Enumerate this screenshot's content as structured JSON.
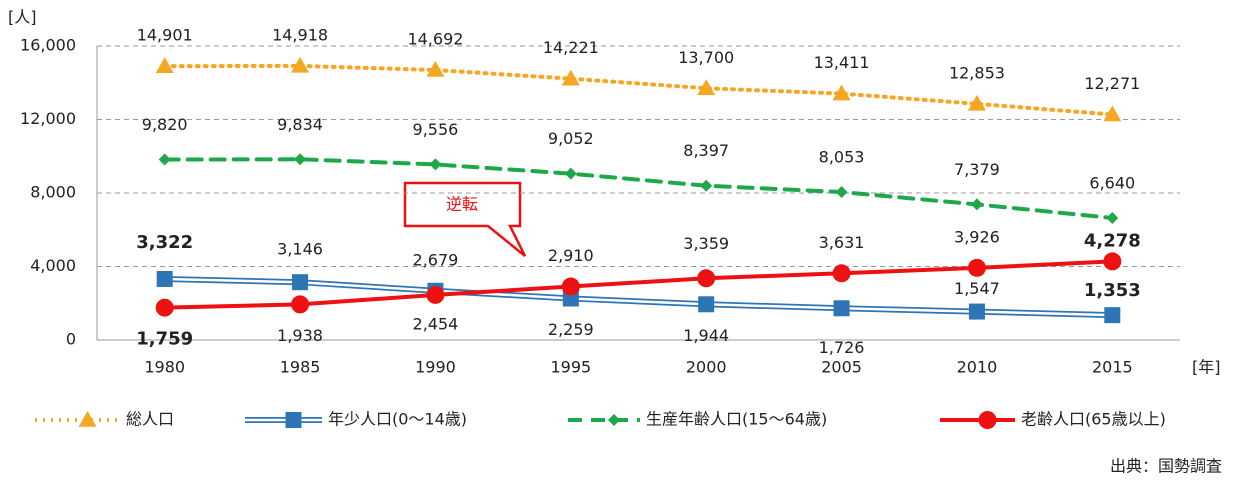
{
  "chart_data": {
    "type": "line",
    "y_unit": "[人]",
    "x_unit": "[年]",
    "source": "出典：国勢調査",
    "annotation": "逆転",
    "categories": [
      "1980",
      "1985",
      "1990",
      "1995",
      "2000",
      "2005",
      "2010",
      "2015"
    ],
    "series": [
      {
        "name": "総人口",
        "color": "#f5a623",
        "style": "dotted",
        "marker": "triangle",
        "values": [
          14901,
          14918,
          14692,
          14221,
          13700,
          13411,
          12853,
          12271
        ],
        "value_labels": [
          "14,901",
          "14,918",
          "14,692",
          "14,221",
          "13,700",
          "13,411",
          "12,853",
          "12,271"
        ]
      },
      {
        "name": "年少人口(0〜14歳)",
        "color": "#2e75b6",
        "style": "double",
        "marker": "square",
        "values": [
          3322,
          3146,
          2679,
          2259,
          1944,
          1726,
          1547,
          1353
        ],
        "value_labels": [
          "3,322",
          "3,146",
          "2,679",
          "2,259",
          "1,944",
          "1,726",
          "1,547",
          "1,353"
        ]
      },
      {
        "name": "生産年齢人口(15〜64歳)",
        "color": "#1ea84a",
        "style": "dashed",
        "marker": "diamond",
        "values": [
          9820,
          9834,
          9556,
          9052,
          8397,
          8053,
          7379,
          6640
        ],
        "value_labels": [
          "9,820",
          "9,834",
          "9,556",
          "9,052",
          "8,397",
          "8,053",
          "7,379",
          "6,640"
        ]
      },
      {
        "name": "老齢人口(65歳以上)",
        "color": "#ee1111",
        "style": "solid",
        "marker": "circle",
        "values": [
          1759,
          1938,
          2454,
          2910,
          3359,
          3631,
          3926,
          4278
        ],
        "value_labels": [
          "1,759",
          "1,938",
          "2,454",
          "2,910",
          "3,359",
          "3,631",
          "3,926",
          "4,278"
        ]
      }
    ],
    "ylim": [
      0,
      16000
    ],
    "yticks": [
      0,
      {
        "value": 4000,
        "label": "4,000"
      },
      {
        "value": 8000,
        "label": "8,000"
      },
      {
        "value": 12000,
        "label": "12,000"
      },
      {
        "value": 16000,
        "label": "16,000"
      }
    ],
    "grid": true
  }
}
